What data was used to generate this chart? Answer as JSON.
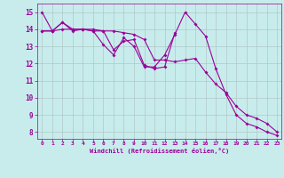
{
  "title": "",
  "xlabel": "Windchill (Refroidissement éolien,°C)",
  "ylabel": "",
  "bg_color": "#c8ecec",
  "line_color": "#990099",
  "grid_color": "#b0c8c8",
  "xlim": [
    -0.5,
    23.4
  ],
  "ylim": [
    7.6,
    15.5
  ],
  "xticks": [
    0,
    1,
    2,
    3,
    4,
    5,
    6,
    7,
    8,
    9,
    10,
    11,
    12,
    13,
    14,
    15,
    16,
    17,
    18,
    19,
    20,
    21,
    22,
    23
  ],
  "yticks": [
    8,
    9,
    10,
    11,
    12,
    13,
    14,
    15
  ],
  "series1": [
    15.0,
    13.9,
    14.4,
    13.9,
    14.0,
    13.9,
    13.1,
    12.5,
    13.5,
    13.0,
    11.8,
    11.8,
    12.5,
    13.7,
    15.0,
    14.3,
    13.6,
    11.7,
    10.2,
    9.0,
    8.5,
    8.3,
    8.0,
    7.8
  ],
  "series2_x": [
    0,
    1,
    2,
    3,
    4,
    5,
    6,
    7,
    8,
    9,
    10,
    11,
    12,
    13
  ],
  "series2_y": [
    13.9,
    13.9,
    14.4,
    14.0,
    14.0,
    13.9,
    13.9,
    12.8,
    13.3,
    13.4,
    11.9,
    11.7,
    11.8,
    13.8
  ],
  "series3": [
    13.9,
    13.9,
    14.0,
    14.0,
    14.0,
    14.0,
    13.9,
    13.9,
    13.8,
    13.7,
    13.4,
    12.2,
    12.2,
    12.1,
    12.2,
    12.3,
    11.5,
    10.8,
    10.3,
    9.5,
    9.0,
    8.8,
    8.5,
    8.0
  ]
}
